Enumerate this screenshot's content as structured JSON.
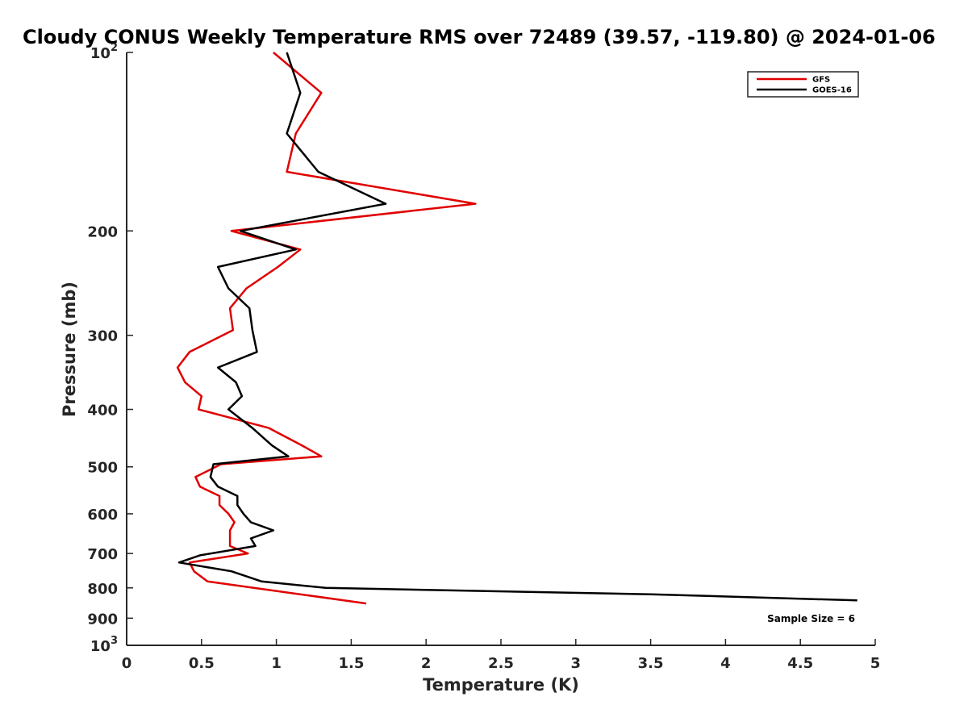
{
  "chart_data": {
    "type": "line",
    "title": "Cloudy CONUS Weekly Temperature RMS over 72489 (39.57, -119.80) @ 2024-01-06",
    "xlabel": "Temperature (K)",
    "ylabel": "Pressure (mb)",
    "xlim": [
      0,
      5
    ],
    "ylim": [
      100,
      1000
    ],
    "y_scale": "log",
    "y_reversed": true,
    "grid": false,
    "legend_position": "top-right",
    "x_ticks": [
      "0",
      "0.5",
      "1",
      "1.5",
      "2",
      "2.5",
      "3",
      "3.5",
      "4",
      "4.5",
      "5"
    ],
    "y_ticks": [
      {
        "value": 100,
        "label": "10",
        "sup": "2"
      },
      {
        "value": 200,
        "label": "200",
        "sup": ""
      },
      {
        "value": 300,
        "label": "300",
        "sup": ""
      },
      {
        "value": 400,
        "label": "400",
        "sup": ""
      },
      {
        "value": 500,
        "label": "500",
        "sup": ""
      },
      {
        "value": 600,
        "label": "600",
        "sup": ""
      },
      {
        "value": 700,
        "label": "700",
        "sup": ""
      },
      {
        "value": 800,
        "label": "800",
        "sup": ""
      },
      {
        "value": 900,
        "label": "900",
        "sup": ""
      },
      {
        "value": 1000,
        "label": "10",
        "sup": "3"
      }
    ],
    "series": [
      {
        "name": "GFS",
        "color": "#e00000",
        "points": [
          [
            0.98,
            100
          ],
          [
            1.3,
            117
          ],
          [
            1.13,
            137
          ],
          [
            1.07,
            159
          ],
          [
            2.33,
            180
          ],
          [
            0.7,
            200
          ],
          [
            1.16,
            215
          ],
          [
            1.01,
            230
          ],
          [
            0.8,
            250
          ],
          [
            0.69,
            270
          ],
          [
            0.71,
            294
          ],
          [
            0.42,
            320
          ],
          [
            0.34,
            340
          ],
          [
            0.39,
            360
          ],
          [
            0.5,
            380
          ],
          [
            0.48,
            400
          ],
          [
            0.95,
            430
          ],
          [
            1.17,
            460
          ],
          [
            1.3,
            480
          ],
          [
            0.63,
            495
          ],
          [
            0.46,
            520
          ],
          [
            0.49,
            540
          ],
          [
            0.62,
            560
          ],
          [
            0.62,
            580
          ],
          [
            0.68,
            600
          ],
          [
            0.72,
            620
          ],
          [
            0.69,
            640
          ],
          [
            0.69,
            660
          ],
          [
            0.69,
            680
          ],
          [
            0.81,
            700
          ],
          [
            0.42,
            725
          ],
          [
            0.45,
            750
          ],
          [
            0.54,
            780
          ],
          [
            1.6,
            850
          ]
        ]
      },
      {
        "name": "GOES-16",
        "color": "#000000",
        "points": [
          [
            1.07,
            100
          ],
          [
            1.16,
            117
          ],
          [
            1.07,
            137
          ],
          [
            1.28,
            159
          ],
          [
            1.73,
            180
          ],
          [
            0.76,
            200
          ],
          [
            1.13,
            215
          ],
          [
            0.61,
            230
          ],
          [
            0.68,
            250
          ],
          [
            0.82,
            270
          ],
          [
            0.84,
            294
          ],
          [
            0.87,
            320
          ],
          [
            0.61,
            340
          ],
          [
            0.73,
            360
          ],
          [
            0.77,
            380
          ],
          [
            0.68,
            400
          ],
          [
            0.84,
            430
          ],
          [
            0.97,
            460
          ],
          [
            1.08,
            480
          ],
          [
            0.58,
            495
          ],
          [
            0.56,
            520
          ],
          [
            0.61,
            540
          ],
          [
            0.74,
            560
          ],
          [
            0.74,
            580
          ],
          [
            0.78,
            600
          ],
          [
            0.83,
            620
          ],
          [
            0.98,
            640
          ],
          [
            0.83,
            660
          ],
          [
            0.86,
            680
          ],
          [
            0.49,
            705
          ],
          [
            0.35,
            725
          ],
          [
            0.7,
            750
          ],
          [
            0.9,
            780
          ],
          [
            1.33,
            800
          ],
          [
            3.5,
            820
          ],
          [
            4.88,
            840
          ]
        ]
      }
    ],
    "annotation": "Sample Size = 6"
  }
}
